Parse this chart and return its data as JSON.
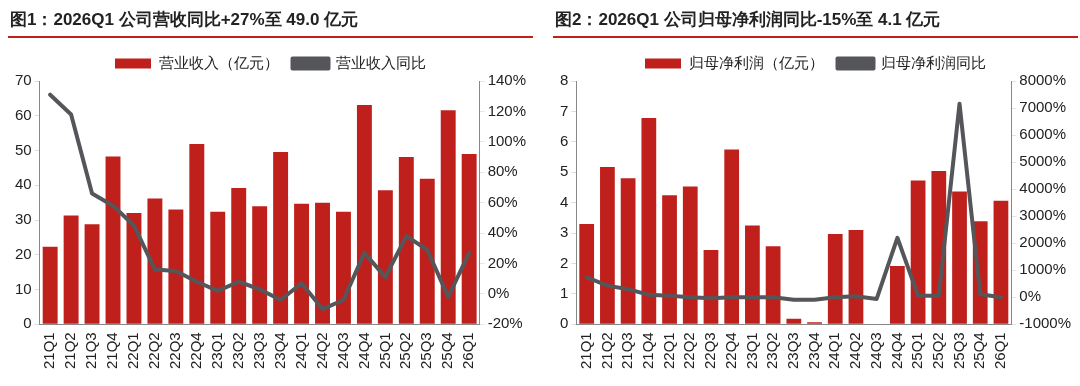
{
  "chart_data": [
    {
      "type": "bar",
      "title": "图1：2026Q1 公司营收同比+27%至 49.0 亿元",
      "categories": [
        "21Q1",
        "21Q2",
        "21Q3",
        "21Q4",
        "22Q1",
        "22Q2",
        "22Q3",
        "22Q4",
        "23Q1",
        "23Q2",
        "23Q3",
        "23Q4",
        "24Q1",
        "24Q2",
        "24Q3",
        "24Q4",
        "25Q1",
        "25Q2",
        "25Q3",
        "25Q4",
        "26Q1"
      ],
      "series": [
        {
          "name": "营业收入（亿元）",
          "color": "#c0201c",
          "values": [
            22.3,
            31.3,
            28.8,
            48.3,
            32.0,
            36.2,
            33.0,
            51.9,
            32.4,
            39.2,
            34.0,
            49.6,
            34.7,
            35.0,
            32.4,
            63.1,
            38.6,
            48.1,
            41.9,
            61.6,
            49.0
          ]
        },
        {
          "name": "营业收入同比",
          "type": "line",
          "axis": "y2",
          "color": "#54565a",
          "values": [
            131,
            118,
            66,
            58,
            45,
            16,
            15,
            8,
            2,
            8,
            3,
            -4,
            7,
            -10,
            -4,
            27,
            11,
            38,
            29,
            -2,
            27
          ]
        }
      ],
      "ylim": [
        0,
        70
      ],
      "yticks": [
        0,
        10,
        20,
        30,
        40,
        50,
        60,
        70
      ],
      "y2lim": [
        -20,
        140
      ],
      "y2ticks": [
        {
          "value": -20,
          "label": "-20%"
        },
        {
          "value": 0,
          "label": "0%"
        },
        {
          "value": 20,
          "label": "20%"
        },
        {
          "value": 40,
          "label": "40%"
        },
        {
          "value": 60,
          "label": "60%"
        },
        {
          "value": 80,
          "label": "80%"
        },
        {
          "value": 100,
          "label": "100%"
        },
        {
          "value": 120,
          "label": "120%"
        },
        {
          "value": 140,
          "label": "140%"
        }
      ],
      "grid": false,
      "legend": "top",
      "marker": "none",
      "line_style": "solid"
    },
    {
      "type": "bar",
      "title": "图2：2026Q1 公司归母净利润同比-15%至 4.1 亿元",
      "categories": [
        "21Q1",
        "21Q2",
        "21Q3",
        "21Q4",
        "22Q1",
        "22Q2",
        "22Q3",
        "22Q4",
        "23Q1",
        "23Q2",
        "23Q3",
        "23Q4",
        "24Q1",
        "24Q2",
        "24Q3",
        "24Q4",
        "25Q1",
        "25Q2",
        "25Q3",
        "25Q4",
        "26Q1"
      ],
      "series": [
        {
          "name": "归母净利润（亿元）",
          "color": "#c0201c",
          "values": [
            3.3,
            5.17,
            4.8,
            6.78,
            4.24,
            4.53,
            2.44,
            5.75,
            3.25,
            2.57,
            0.18,
            0.07,
            2.97,
            3.1,
            null,
            1.92,
            4.73,
            5.04,
            4.37,
            3.39,
            4.06
          ]
        },
        {
          "name": "归母净利润同比",
          "type": "line",
          "axis": "y2",
          "color": "#54565a",
          "values": [
            740,
            430,
            300,
            90,
            60,
            0,
            -40,
            0,
            0,
            0,
            -90,
            -90,
            0,
            40,
            -60,
            2200,
            60,
            60,
            7160,
            110,
            0
          ]
        }
      ],
      "ylim": [
        0,
        8
      ],
      "yticks": [
        0,
        1,
        2,
        3,
        4,
        5,
        6,
        7,
        8
      ],
      "y2lim": [
        -1000,
        8000
      ],
      "y2ticks": [
        {
          "value": -1000,
          "label": "-1000%"
        },
        {
          "value": 0,
          "label": "0%"
        },
        {
          "value": 1000,
          "label": "1000%"
        },
        {
          "value": 2000,
          "label": "2000%"
        },
        {
          "value": 3000,
          "label": "3000%"
        },
        {
          "value": 4000,
          "label": "4000%"
        },
        {
          "value": 5000,
          "label": "5000%"
        },
        {
          "value": 6000,
          "label": "6000%"
        },
        {
          "value": 7000,
          "label": "7000%"
        },
        {
          "value": 8000,
          "label": "8000%"
        }
      ],
      "grid": false,
      "legend": "top",
      "marker": "none",
      "line_style": "solid"
    }
  ]
}
